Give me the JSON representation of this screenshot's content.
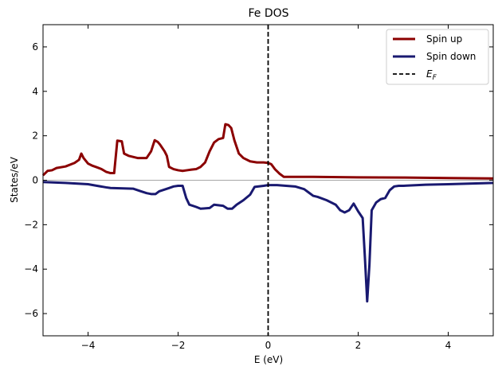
{
  "chart_data": {
    "type": "line",
    "title": "Fe DOS",
    "xlabel": "E (eV)",
    "ylabel": "States/eV",
    "xlim": [
      -5,
      5
    ],
    "ylim": [
      -7,
      7
    ],
    "x_ticks": [
      -4,
      -2,
      0,
      2,
      4
    ],
    "y_ticks": [
      -6,
      -4,
      -2,
      0,
      2,
      4,
      6
    ],
    "legend_position": "top-right",
    "fermi_level": 0,
    "series": [
      {
        "name": "Spin up",
        "color": "#8b0000",
        "points": [
          [
            -5.0,
            0.22
          ],
          [
            -4.9,
            0.42
          ],
          [
            -4.8,
            0.45
          ],
          [
            -4.7,
            0.55
          ],
          [
            -4.5,
            0.62
          ],
          [
            -4.3,
            0.78
          ],
          [
            -4.2,
            0.92
          ],
          [
            -4.15,
            1.2
          ],
          [
            -4.1,
            1.0
          ],
          [
            -4.0,
            0.75
          ],
          [
            -3.9,
            0.65
          ],
          [
            -3.8,
            0.58
          ],
          [
            -3.7,
            0.5
          ],
          [
            -3.6,
            0.38
          ],
          [
            -3.5,
            0.32
          ],
          [
            -3.42,
            0.32
          ],
          [
            -3.35,
            1.78
          ],
          [
            -3.25,
            1.75
          ],
          [
            -3.2,
            1.2
          ],
          [
            -3.1,
            1.1
          ],
          [
            -3.0,
            1.05
          ],
          [
            -2.9,
            1.0
          ],
          [
            -2.8,
            1.0
          ],
          [
            -2.7,
            1.0
          ],
          [
            -2.6,
            1.3
          ],
          [
            -2.52,
            1.8
          ],
          [
            -2.45,
            1.72
          ],
          [
            -2.4,
            1.6
          ],
          [
            -2.3,
            1.3
          ],
          [
            -2.25,
            1.1
          ],
          [
            -2.2,
            0.6
          ],
          [
            -2.1,
            0.5
          ],
          [
            -2.0,
            0.45
          ],
          [
            -1.9,
            0.42
          ],
          [
            -1.8,
            0.45
          ],
          [
            -1.7,
            0.48
          ],
          [
            -1.6,
            0.5
          ],
          [
            -1.5,
            0.6
          ],
          [
            -1.4,
            0.8
          ],
          [
            -1.3,
            1.3
          ],
          [
            -1.2,
            1.7
          ],
          [
            -1.1,
            1.85
          ],
          [
            -1.0,
            1.9
          ],
          [
            -0.95,
            2.52
          ],
          [
            -0.88,
            2.48
          ],
          [
            -0.82,
            2.35
          ],
          [
            -0.75,
            1.8
          ],
          [
            -0.65,
            1.2
          ],
          [
            -0.55,
            1.0
          ],
          [
            -0.4,
            0.85
          ],
          [
            -0.25,
            0.8
          ],
          [
            -0.1,
            0.8
          ],
          [
            0.0,
            0.78
          ],
          [
            0.07,
            0.72
          ],
          [
            0.15,
            0.5
          ],
          [
            0.25,
            0.3
          ],
          [
            0.35,
            0.15
          ],
          [
            0.6,
            0.15
          ],
          [
            1.0,
            0.15
          ],
          [
            2.0,
            0.13
          ],
          [
            3.0,
            0.12
          ],
          [
            4.0,
            0.1
          ],
          [
            5.0,
            0.08
          ]
        ]
      },
      {
        "name": "Spin down",
        "color": "#191970",
        "points": [
          [
            -5.0,
            -0.08
          ],
          [
            -4.5,
            -0.12
          ],
          [
            -4.0,
            -0.18
          ],
          [
            -3.8,
            -0.25
          ],
          [
            -3.6,
            -0.32
          ],
          [
            -3.5,
            -0.35
          ],
          [
            -3.0,
            -0.38
          ],
          [
            -2.85,
            -0.48
          ],
          [
            -2.7,
            -0.58
          ],
          [
            -2.6,
            -0.62
          ],
          [
            -2.5,
            -0.62
          ],
          [
            -2.42,
            -0.5
          ],
          [
            -2.3,
            -0.42
          ],
          [
            -2.2,
            -0.35
          ],
          [
            -2.1,
            -0.28
          ],
          [
            -2.0,
            -0.25
          ],
          [
            -1.9,
            -0.25
          ],
          [
            -1.82,
            -0.8
          ],
          [
            -1.75,
            -1.1
          ],
          [
            -1.6,
            -1.2
          ],
          [
            -1.5,
            -1.28
          ],
          [
            -1.3,
            -1.25
          ],
          [
            -1.2,
            -1.1
          ],
          [
            -1.0,
            -1.15
          ],
          [
            -0.9,
            -1.28
          ],
          [
            -0.8,
            -1.28
          ],
          [
            -0.7,
            -1.1
          ],
          [
            -0.55,
            -0.9
          ],
          [
            -0.4,
            -0.65
          ],
          [
            -0.3,
            -0.3
          ],
          [
            -0.1,
            -0.25
          ],
          [
            0.0,
            -0.22
          ],
          [
            0.2,
            -0.22
          ],
          [
            0.4,
            -0.25
          ],
          [
            0.6,
            -0.28
          ],
          [
            0.8,
            -0.4
          ],
          [
            0.9,
            -0.55
          ],
          [
            1.0,
            -0.7
          ],
          [
            1.1,
            -0.75
          ],
          [
            1.3,
            -0.9
          ],
          [
            1.5,
            -1.1
          ],
          [
            1.6,
            -1.35
          ],
          [
            1.7,
            -1.45
          ],
          [
            1.8,
            -1.35
          ],
          [
            1.9,
            -1.05
          ],
          [
            2.0,
            -1.4
          ],
          [
            2.1,
            -1.7
          ],
          [
            2.15,
            -3.5
          ],
          [
            2.2,
            -5.45
          ],
          [
            2.25,
            -3.8
          ],
          [
            2.3,
            -1.35
          ],
          [
            2.4,
            -1.0
          ],
          [
            2.5,
            -0.85
          ],
          [
            2.6,
            -0.8
          ],
          [
            2.7,
            -0.45
          ],
          [
            2.8,
            -0.28
          ],
          [
            2.9,
            -0.25
          ],
          [
            3.0,
            -0.25
          ],
          [
            3.5,
            -0.2
          ],
          [
            4.0,
            -0.18
          ],
          [
            5.0,
            -0.12
          ]
        ]
      }
    ],
    "fermi_label": "E_F"
  }
}
